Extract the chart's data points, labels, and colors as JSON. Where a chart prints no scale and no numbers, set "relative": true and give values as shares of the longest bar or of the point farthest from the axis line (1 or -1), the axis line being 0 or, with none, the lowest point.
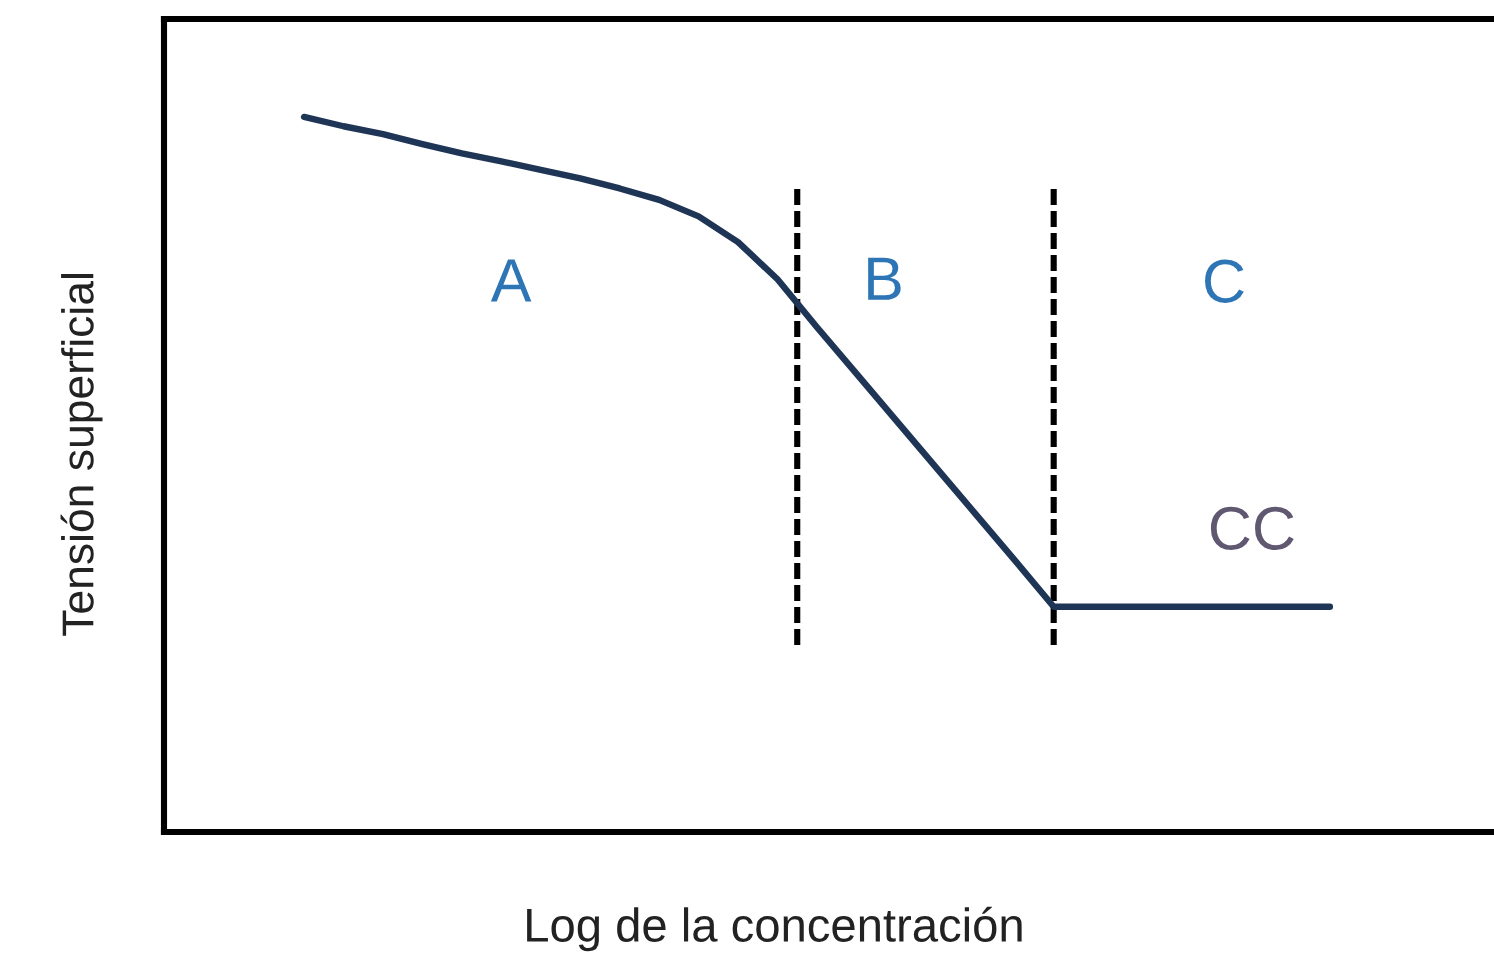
{
  "chart_data": {
    "type": "line",
    "relative": true,
    "xlabel": "Log de la concentración",
    "ylabel": "Tensión superficial",
    "categories": [
      null,
      null,
      null,
      null,
      null,
      null,
      null,
      null,
      null,
      null,
      null,
      null,
      null,
      null,
      null,
      null,
      null,
      null,
      null,
      null,
      null,
      null,
      null,
      null,
      null,
      null,
      null
    ],
    "series": [
      {
        "color": "#1f3556",
        "values": [
          1.0,
          0.987,
          0.976,
          0.962,
          0.949,
          0.938,
          0.926,
          0.914,
          0.9,
          0.884,
          0.861,
          0.825,
          0.773,
          0.706,
          0.641,
          0.576,
          0.511,
          0.446,
          0.381,
          0.315,
          0.315,
          0.315,
          0.315,
          0.315,
          0.315,
          0.315,
          0.315
        ]
      }
    ],
    "annotations": [
      "A",
      "B",
      "C",
      "CC"
    ],
    "legend": false,
    "marker": "none",
    "line_style": "solid"
  }
}
